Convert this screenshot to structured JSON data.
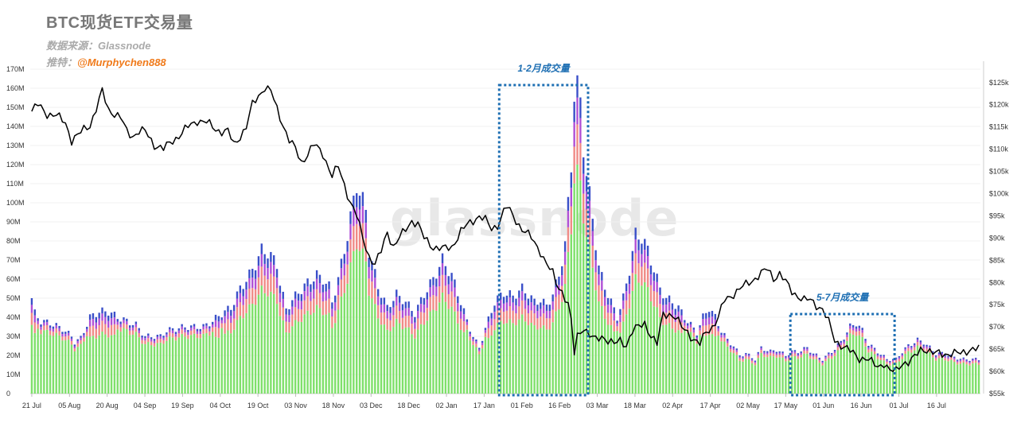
{
  "header": {
    "title": "BTC现货ETF交易量",
    "source_label": "数据来源：Glassnode",
    "twitter_prefix": "推特：",
    "twitter_handle": "@Murphychen888"
  },
  "watermark": "glassnode",
  "colors": {
    "volume_base": "#7ee06a",
    "volume_l2": "#f08a86",
    "volume_l3": "#b04fd6",
    "volume_l4": "#3a4fc9",
    "price_line": "#000000",
    "annotation": "#1e6fb3"
  },
  "chart_data": {
    "type": "bar+line",
    "left_axis": {
      "ylim": [
        0,
        170000000
      ],
      "ticks": [
        "0",
        "10M",
        "20M",
        "30M",
        "40M",
        "50M",
        "60M",
        "70M",
        "80M",
        "90M",
        "100M",
        "110M",
        "120M",
        "130M",
        "140M",
        "150M",
        "160M",
        "170M"
      ]
    },
    "right_axis": {
      "ylim": [
        55000,
        128000
      ],
      "ticks": [
        "$55k",
        "$60k",
        "$65k",
        "$70k",
        "$75k",
        "$80k",
        "$85k",
        "$90k",
        "$95k",
        "$100k",
        "$105k",
        "$110k",
        "$115k",
        "$120k",
        "$125k"
      ]
    },
    "x_ticks": [
      "21 Jul",
      "05 Aug",
      "20 Aug",
      "04 Sep",
      "19 Sep",
      "04 Oct",
      "19 Oct",
      "03 Nov",
      "18 Nov",
      "03 Dec",
      "18 Dec",
      "02 Jan",
      "17 Jan",
      "01 Feb",
      "16 Feb",
      "03 Mar",
      "18 Mar",
      "02 Apr",
      "17 Apr",
      "02 May",
      "17 May",
      "01 Jun",
      "16 Jun",
      "01 Jul",
      "16 Jul"
    ],
    "volume_keypoints": [
      [
        0,
        50
      ],
      [
        1,
        42
      ],
      [
        3,
        38
      ],
      [
        6,
        37
      ],
      [
        10,
        34
      ],
      [
        13,
        30
      ],
      [
        14,
        27
      ],
      [
        16,
        29
      ],
      [
        19,
        40
      ],
      [
        22,
        43
      ],
      [
        25,
        43
      ],
      [
        28,
        40
      ],
      [
        31,
        38
      ],
      [
        34,
        36
      ],
      [
        37,
        30
      ],
      [
        40,
        30
      ],
      [
        42,
        30
      ],
      [
        44,
        33
      ],
      [
        47,
        34
      ],
      [
        50,
        35
      ],
      [
        53,
        35
      ],
      [
        56,
        35
      ],
      [
        59,
        38
      ],
      [
        62,
        42
      ],
      [
        65,
        45
      ],
      [
        68,
        55
      ],
      [
        71,
        62
      ],
      [
        73,
        68
      ],
      [
        75,
        75
      ],
      [
        77,
        74
      ],
      [
        80,
        68
      ],
      [
        81,
        58
      ],
      [
        83,
        44
      ],
      [
        85,
        49
      ],
      [
        87,
        53
      ],
      [
        90,
        58
      ],
      [
        93,
        62
      ],
      [
        95,
        60
      ],
      [
        97,
        56
      ],
      [
        98,
        48
      ],
      [
        100,
        60
      ],
      [
        103,
        83
      ],
      [
        106,
        110
      ],
      [
        109,
        96
      ],
      [
        110,
        75
      ],
      [
        113,
        56
      ],
      [
        116,
        45
      ],
      [
        119,
        52
      ],
      [
        122,
        48
      ],
      [
        125,
        42
      ],
      [
        128,
        52
      ],
      [
        131,
        60
      ],
      [
        134,
        70
      ],
      [
        137,
        62
      ],
      [
        140,
        48
      ],
      [
        142,
        38
      ],
      [
        144,
        30
      ],
      [
        146,
        24
      ],
      [
        148,
        34
      ],
      [
        151,
        48
      ],
      [
        154,
        53
      ],
      [
        157,
        51
      ],
      [
        160,
        55
      ],
      [
        162,
        52
      ],
      [
        164,
        48
      ],
      [
        166,
        49
      ],
      [
        168,
        46
      ],
      [
        170,
        52
      ],
      [
        172,
        62
      ],
      [
        174,
        78
      ],
      [
        176,
        120
      ],
      [
        177,
        158
      ],
      [
        178,
        160
      ],
      [
        179,
        152
      ],
      [
        180,
        130
      ],
      [
        181,
        115
      ],
      [
        183,
        92
      ],
      [
        185,
        66
      ],
      [
        187,
        56
      ],
      [
        189,
        48
      ],
      [
        191,
        40
      ],
      [
        193,
        50
      ],
      [
        195,
        65
      ],
      [
        197,
        83
      ],
      [
        199,
        82
      ],
      [
        201,
        75
      ],
      [
        203,
        65
      ],
      [
        205,
        55
      ],
      [
        207,
        50
      ],
      [
        209,
        48
      ],
      [
        211,
        45
      ],
      [
        213,
        40
      ],
      [
        215,
        36
      ],
      [
        217,
        32
      ],
      [
        219,
        40
      ],
      [
        221,
        45
      ],
      [
        223,
        40
      ],
      [
        225,
        33
      ],
      [
        227,
        28
      ],
      [
        229,
        25
      ],
      [
        231,
        20
      ],
      [
        233,
        21
      ],
      [
        236,
        18
      ],
      [
        238,
        24
      ],
      [
        241,
        22
      ],
      [
        243,
        23
      ],
      [
        246,
        20
      ],
      [
        248,
        22
      ],
      [
        250,
        22
      ],
      [
        253,
        24
      ],
      [
        255,
        21
      ],
      [
        258,
        18
      ],
      [
        261,
        22
      ],
      [
        264,
        27
      ],
      [
        267,
        35
      ],
      [
        269,
        37
      ],
      [
        271,
        33
      ],
      [
        273,
        26
      ],
      [
        276,
        22
      ],
      [
        279,
        18
      ],
      [
        282,
        18
      ],
      [
        284,
        22
      ],
      [
        286,
        25
      ],
      [
        289,
        28
      ],
      [
        291,
        27
      ],
      [
        293,
        24
      ],
      [
        295,
        21
      ],
      [
        298,
        21
      ],
      [
        301,
        19
      ],
      [
        304,
        18
      ],
      [
        307,
        18
      ],
      [
        309,
        18
      ]
    ],
    "price_keypoints": [
      [
        0,
        118.5
      ],
      [
        2,
        120
      ],
      [
        5,
        118
      ],
      [
        8,
        117.5
      ],
      [
        11,
        116
      ],
      [
        13,
        112
      ],
      [
        15,
        113
      ],
      [
        17,
        114.5
      ],
      [
        19,
        115.5
      ],
      [
        21,
        119
      ],
      [
        23,
        123
      ],
      [
        25,
        119
      ],
      [
        27,
        118
      ],
      [
        29,
        117
      ],
      [
        31,
        114
      ],
      [
        33,
        113
      ],
      [
        35,
        114
      ],
      [
        37,
        114
      ],
      [
        40,
        111
      ],
      [
        43,
        110
      ],
      [
        46,
        112
      ],
      [
        48,
        113
      ],
      [
        51,
        115
      ],
      [
        54,
        116.5
      ],
      [
        57,
        116
      ],
      [
        60,
        114.5
      ],
      [
        62,
        114
      ],
      [
        64,
        114
      ],
      [
        66,
        111
      ],
      [
        68,
        113
      ],
      [
        70,
        115
      ],
      [
        72,
        120
      ],
      [
        74,
        122
      ],
      [
        76,
        124
      ],
      [
        78,
        123
      ],
      [
        80,
        119
      ],
      [
        82,
        115.5
      ],
      [
        84,
        112
      ],
      [
        86,
        110
      ],
      [
        88,
        107
      ],
      [
        90,
        109
      ],
      [
        92,
        111
      ],
      [
        95,
        109
      ],
      [
        98,
        104
      ],
      [
        100,
        106
      ],
      [
        102,
        102
      ],
      [
        104,
        98
      ],
      [
        106,
        95
      ],
      [
        108,
        90
      ],
      [
        110,
        86
      ],
      [
        112,
        84
      ],
      [
        114,
        87
      ],
      [
        116,
        91.5
      ],
      [
        118,
        88
      ],
      [
        120,
        90
      ],
      [
        122,
        92
      ],
      [
        124,
        94
      ],
      [
        126,
        93
      ],
      [
        128,
        90
      ],
      [
        131,
        88
      ],
      [
        134,
        87.5
      ],
      [
        137,
        88
      ],
      [
        140,
        91.5
      ],
      [
        143,
        93.5
      ],
      [
        146,
        95
      ],
      [
        148,
        94
      ],
      [
        150,
        92
      ],
      [
        152,
        93
      ],
      [
        154,
        96
      ],
      [
        155,
        97
      ],
      [
        157,
        95
      ],
      [
        160,
        92
      ],
      [
        163,
        90
      ],
      [
        166,
        87
      ],
      [
        168,
        84
      ],
      [
        170,
        82
      ],
      [
        171,
        80
      ],
      [
        173,
        78
      ],
      [
        175,
        75
      ],
      [
        176,
        71
      ],
      [
        177,
        64
      ],
      [
        178,
        68
      ],
      [
        180,
        70
      ],
      [
        182,
        68
      ],
      [
        184,
        67
      ],
      [
        186,
        68
      ],
      [
        188,
        67
      ],
      [
        190,
        66
      ],
      [
        192,
        67
      ],
      [
        194,
        66
      ],
      [
        196,
        69
      ],
      [
        198,
        70
      ],
      [
        200,
        71
      ],
      [
        202,
        68
      ],
      [
        204,
        66
      ],
      [
        206,
        73
      ],
      [
        208,
        73
      ],
      [
        210,
        72
      ],
      [
        212,
        70
      ],
      [
        214,
        69
      ],
      [
        216,
        67
      ],
      [
        218,
        66
      ],
      [
        220,
        69
      ],
      [
        222,
        70
      ],
      [
        224,
        72
      ],
      [
        226,
        76
      ],
      [
        228,
        77
      ],
      [
        230,
        78
      ],
      [
        232,
        79
      ],
      [
        234,
        80
      ],
      [
        236,
        81
      ],
      [
        238,
        82
      ],
      [
        240,
        83
      ],
      [
        242,
        81
      ],
      [
        244,
        82
      ],
      [
        246,
        80
      ],
      [
        248,
        78
      ],
      [
        250,
        77
      ],
      [
        252,
        76
      ],
      [
        254,
        76
      ],
      [
        256,
        75
      ],
      [
        258,
        74
      ],
      [
        260,
        71
      ],
      [
        262,
        67
      ],
      [
        264,
        66
      ],
      [
        266,
        65
      ],
      [
        268,
        64
      ],
      [
        270,
        63
      ],
      [
        272,
        63
      ],
      [
        274,
        62
      ],
      [
        276,
        61
      ],
      [
        278,
        62
      ],
      [
        280,
        60
      ],
      [
        282,
        60
      ],
      [
        284,
        62
      ],
      [
        286,
        62
      ],
      [
        288,
        63
      ],
      [
        290,
        65
      ],
      [
        292,
        65
      ],
      [
        294,
        64
      ],
      [
        296,
        64
      ],
      [
        298,
        64
      ],
      [
        300,
        64
      ],
      [
        303,
        64
      ],
      [
        306,
        65
      ],
      [
        309,
        65
      ]
    ],
    "annotations": [
      {
        "label": "1-2月成交量"
      },
      {
        "label": "5-7月成交量"
      }
    ]
  }
}
